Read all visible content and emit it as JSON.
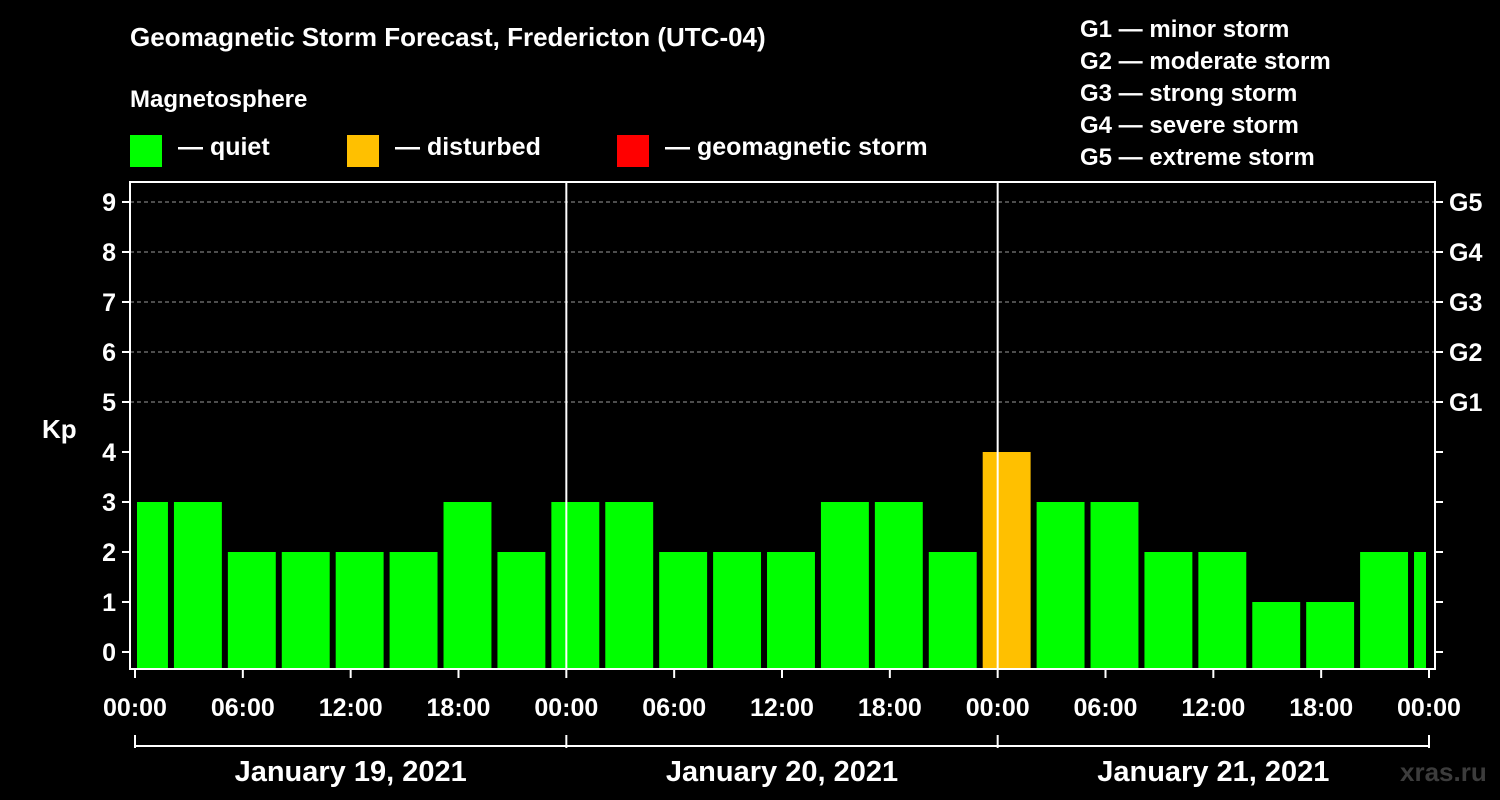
{
  "header": {
    "title": "Geomagnetic Storm Forecast, Fredericton (UTC-04)",
    "subtitle": "Magnetosphere"
  },
  "legend": {
    "items": [
      {
        "label": "— quiet",
        "color": "#00ff00"
      },
      {
        "label": "— disturbed",
        "color": "#ffc000"
      },
      {
        "label": "— geomagnetic storm",
        "color": "#ff0000"
      }
    ]
  },
  "storm_scale": [
    "G1 — minor storm",
    "G2 — moderate storm",
    "G3 — strong storm",
    "G4 — severe storm",
    "G5 — extreme storm"
  ],
  "watermark": "xras.ru",
  "chart_data": {
    "type": "bar",
    "title": "Geomagnetic Storm Forecast, Fredericton (UTC-04)",
    "ylabel": "Kp",
    "ylim": [
      0,
      9
    ],
    "yticks": [
      "0",
      "1",
      "2",
      "3",
      "4",
      "5",
      "6",
      "7",
      "8",
      "9"
    ],
    "right_ticks": [
      {
        "kp": 5,
        "label": "G1"
      },
      {
        "kp": 6,
        "label": "G2"
      },
      {
        "kp": 7,
        "label": "G3"
      },
      {
        "kp": 8,
        "label": "G4"
      },
      {
        "kp": 9,
        "label": "G5"
      }
    ],
    "xlim_hours": [
      0,
      72
    ],
    "xtick_labels": [
      "00:00",
      "06:00",
      "12:00",
      "18:00",
      "00:00",
      "06:00",
      "12:00",
      "18:00",
      "00:00",
      "06:00",
      "12:00",
      "18:00",
      "00:00"
    ],
    "days": [
      "January 19, 2021",
      "January 20, 2021",
      "January 21, 2021"
    ],
    "bar_start_hours": [
      0,
      2,
      5,
      8,
      11,
      14,
      17,
      20,
      23,
      26,
      29,
      32,
      35,
      38,
      41,
      44,
      47,
      50,
      53,
      56,
      59,
      62,
      65,
      68,
      71
    ],
    "values": [
      3,
      3,
      2,
      2,
      2,
      2,
      3,
      2,
      3,
      3,
      2,
      2,
      2,
      3,
      3,
      2,
      4,
      3,
      3,
      2,
      2,
      1,
      1,
      2,
      2
    ],
    "statuses": [
      "quiet",
      "quiet",
      "quiet",
      "quiet",
      "quiet",
      "quiet",
      "quiet",
      "quiet",
      "quiet",
      "quiet",
      "quiet",
      "quiet",
      "quiet",
      "quiet",
      "quiet",
      "quiet",
      "disturbed",
      "quiet",
      "quiet",
      "quiet",
      "quiet",
      "quiet",
      "quiet",
      "quiet",
      "quiet"
    ],
    "status_colors": {
      "quiet": "#00ff00",
      "disturbed": "#ffc000",
      "storm": "#ff0000"
    }
  }
}
